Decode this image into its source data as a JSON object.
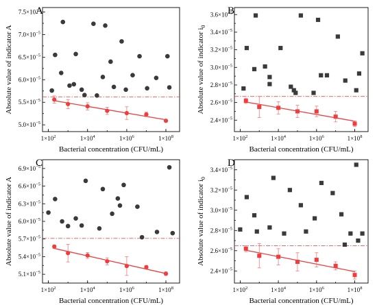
{
  "chart_data": [
    {
      "type": "scatter",
      "panel": "A",
      "ylabel": "Absolute value of indicator A",
      "xlabel": "Bacterial concentration (CFU/mL)",
      "x_scale": "log",
      "x_tick_labels": [
        {
          "value": 100,
          "mantissa": "1×10",
          "exponent": "2"
        },
        {
          "value": 10000,
          "mantissa": "1×10",
          "exponent": "4"
        },
        {
          "value": 1000000,
          "mantissa": "1×10",
          "exponent": "6"
        },
        {
          "value": 100000000,
          "mantissa": "1×10",
          "exponent": "8"
        }
      ],
      "xlim": [
        50,
        500000000
      ],
      "ylim": [
        4.85e-05,
        7.6e-05
      ],
      "y_tick_labels": [
        {
          "value": 5e-05,
          "mantissa": "5.0×10",
          "exponent": "−5"
        },
        {
          "value": 5.5e-05,
          "mantissa": "5.5×10",
          "exponent": "−5"
        },
        {
          "value": 6e-05,
          "mantissa": "6.0×10",
          "exponent": "−5"
        },
        {
          "value": 6.5e-05,
          "mantissa": "6.5×10",
          "exponent": "−5"
        },
        {
          "value": 7e-05,
          "mantissa": "7.0×10",
          "exponent": "−5"
        },
        {
          "value": 7.5e-05,
          "mantissa": "7.5×10",
          "exponent": "−5"
        }
      ],
      "marker": "circle",
      "threshold": 5.62e-05,
      "series": [
        {
          "color": "#3a3a3a",
          "x": [
            150,
            220,
            450,
            550,
            1200,
            2000,
            2500,
            5000,
            7000,
            20000,
            30000,
            60000,
            80000,
            150000,
            220000,
            550000,
            900000,
            2000000,
            4500000,
            11000000,
            32000000,
            120000000,
            150000000
          ],
          "y": [
            5.76e-05,
            6.55e-05,
            6.15e-05,
            7.28e-05,
            5.87e-05,
            5.9e-05,
            6.57e-05,
            5.78e-05,
            5.66e-05,
            7.24e-05,
            5.65e-05,
            6.06e-05,
            7.2e-05,
            6.4e-05,
            5.84e-05,
            6.85e-05,
            5.78e-05,
            6.1e-05,
            6.52e-05,
            5.81e-05,
            6.04e-05,
            6.52e-05,
            5.83e-05
          ]
        },
        {
          "color": "#f03c3c",
          "x": [
            200,
            1000,
            10000,
            100000,
            1000000,
            10000000,
            100000000
          ],
          "y": [
            5.56e-05,
            5.46e-05,
            5.41e-05,
            5.31e-05,
            5.26e-05,
            5.23e-05,
            5.09e-05
          ],
          "error": [
            8e-07,
            1e-06,
            8e-07,
            8e-07,
            1.4e-06,
            5e-07,
            3e-07
          ]
        }
      ]
    },
    {
      "type": "scatter",
      "panel": "B",
      "ylabel_main": "Absolute value of indicator i",
      "ylabel_sub": "0",
      "xlabel": "Bacterial concentration (CFU/mL)",
      "x_scale": "log",
      "x_tick_labels": [
        {
          "value": 100,
          "mantissa": "1×10",
          "exponent": "2"
        },
        {
          "value": 10000,
          "mantissa": "1×10",
          "exponent": "4"
        },
        {
          "value": 1000000,
          "mantissa": "1×10",
          "exponent": "6"
        },
        {
          "value": 100000000,
          "mantissa": "1×10",
          "exponent": "8"
        }
      ],
      "xlim": [
        50,
        500000000
      ],
      "ylim": [
        2.27e-05,
        3.68e-05
      ],
      "y_tick_labels": [
        {
          "value": 2.4e-05,
          "mantissa": "2.4×10",
          "exponent": "−5"
        },
        {
          "value": 2.6e-05,
          "mantissa": "2.6×10",
          "exponent": "−5"
        },
        {
          "value": 2.8e-05,
          "mantissa": "2.8×10",
          "exponent": "−5"
        },
        {
          "value": 3e-05,
          "mantissa": "3.0×10",
          "exponent": "−5"
        },
        {
          "value": 3.2e-05,
          "mantissa": "3.2×10",
          "exponent": "−5"
        },
        {
          "value": 3.4e-05,
          "mantissa": "3.4×10",
          "exponent": "−5"
        },
        {
          "value": 3.6e-05,
          "mantissa": "3.6×10",
          "exponent": "−5"
        }
      ],
      "marker": "square",
      "threshold": 2.67e-05,
      "series": [
        {
          "color": "#3a3a3a",
          "x": [
            150,
            220,
            550,
            650,
            2000,
            3500,
            3500,
            13000,
            45000,
            65000,
            80000,
            150000,
            700000,
            1200000,
            1700000,
            3500000,
            13000000,
            32000000,
            120000000,
            170000000,
            250000000
          ],
          "y": [
            2.76e-05,
            3.22e-05,
            2.98e-05,
            3.59e-05,
            3.01e-05,
            2.81e-05,
            2.89e-05,
            3.22e-05,
            2.78e-05,
            2.74e-05,
            2.71e-05,
            3.59e-05,
            2.71e-05,
            3.54e-05,
            2.91e-05,
            2.91e-05,
            3.35e-05,
            2.85e-05,
            2.74e-05,
            2.93e-05,
            3.16e-05
          ],
          "note": "grey squares"
        },
        {
          "color": "#f03c3c",
          "x": [
            200,
            1000,
            10000,
            100000,
            1000000,
            10000000,
            100000000
          ],
          "y": [
            2.62e-05,
            2.55e-05,
            2.54e-05,
            2.5e-05,
            2.5e-05,
            2.44e-05,
            2.36e-05
          ],
          "error": [
            3e-07,
            1.2e-06,
            7e-07,
            7e-07,
            6e-07,
            6e-07,
            3e-07
          ]
        }
      ]
    },
    {
      "type": "scatter",
      "panel": "C",
      "ylabel": "Absolute value of indicator A",
      "xlabel": "Bacterial concentration (CFU/mL)",
      "x_scale": "log",
      "x_tick_labels": [
        {
          "value": 100,
          "mantissa": "1×10",
          "exponent": "2"
        },
        {
          "value": 10000,
          "mantissa": "1×10",
          "exponent": "4"
        },
        {
          "value": 1000000,
          "mantissa": "1×10",
          "exponent": "6"
        },
        {
          "value": 100000000,
          "mantissa": "1×10",
          "exponent": "8"
        }
      ],
      "xlim": [
        50,
        500000000
      ],
      "ylim": [
        4.95e-05,
        7.05e-05
      ],
      "y_tick_labels": [
        {
          "value": 5.1e-05,
          "mantissa": "5.1×10",
          "exponent": "−5"
        },
        {
          "value": 5.4e-05,
          "mantissa": "5.4×10",
          "exponent": "−5"
        },
        {
          "value": 5.7e-05,
          "mantissa": "5.7×10",
          "exponent": "−5"
        },
        {
          "value": 6e-05,
          "mantissa": "6.0×10",
          "exponent": "−5"
        },
        {
          "value": 6.3e-05,
          "mantissa": "6.3×10",
          "exponent": "−5"
        },
        {
          "value": 6.6e-05,
          "mantissa": "6.6×10",
          "exponent": "−5"
        },
        {
          "value": 6.9e-05,
          "mantissa": "6.9×10",
          "exponent": "−5"
        }
      ],
      "marker": "circle",
      "threshold": 5.71e-05,
      "series": [
        {
          "color": "#3a3a3a",
          "x": [
            100,
            220,
            500,
            1000,
            2500,
            5000,
            8000,
            40000,
            60000,
            180000,
            350000,
            450000,
            700000,
            3500000,
            6000000,
            35000000,
            150000000,
            220000000
          ],
          "y": [
            6.15e-05,
            6.38e-05,
            6e-05,
            5.92e-05,
            6.05e-05,
            5.93e-05,
            6.69e-05,
            5.88e-05,
            6.55e-05,
            6.13e-05,
            6.39e-05,
            6.27e-05,
            6.62e-05,
            6.25e-05,
            5.73e-05,
            5.82e-05,
            6.92e-05,
            5.8e-05
          ]
        },
        {
          "color": "#f03c3c",
          "x": [
            200,
            1000,
            10000,
            100000,
            1000000,
            10000000,
            100000000
          ],
          "y": [
            5.57e-05,
            5.46e-05,
            5.42e-05,
            5.32e-05,
            5.24e-05,
            5.22e-05,
            5.11e-05
          ],
          "error": [
            3e-07,
            1.5e-06,
            5e-07,
            6e-07,
            1.6e-06,
            3e-07,
            3e-07
          ]
        }
      ]
    },
    {
      "type": "scatter",
      "panel": "D",
      "ylabel_main": "Absolute value of indicator i",
      "ylabel_sub": "0",
      "xlabel": "Bacterial concentration (CFU/mL)",
      "x_scale": "log",
      "x_tick_labels": [
        {
          "value": 100,
          "mantissa": "1×10",
          "exponent": "2"
        },
        {
          "value": 10000,
          "mantissa": "1×10",
          "exponent": "4"
        },
        {
          "value": 1000000,
          "mantissa": "1×10",
          "exponent": "6"
        },
        {
          "value": 100000000,
          "mantissa": "1×10",
          "exponent": "8"
        }
      ],
      "xlim": [
        50,
        500000000
      ],
      "ylim": [
        2.28e-05,
        3.5e-05
      ],
      "y_tick_labels": [
        {
          "value": 2.4e-05,
          "mantissa": "2.4×10",
          "exponent": "−5"
        },
        {
          "value": 2.6e-05,
          "mantissa": "2.6×10",
          "exponent": "−5"
        },
        {
          "value": 2.8e-05,
          "mantissa": "2.8×10",
          "exponent": "−5"
        },
        {
          "value": 3e-05,
          "mantissa": "3.0×10",
          "exponent": "−5"
        },
        {
          "value": 3.2e-05,
          "mantissa": "3.2×10",
          "exponent": "−5"
        },
        {
          "value": 3.4e-05,
          "mantissa": "3.4×10",
          "exponent": "−5"
        }
      ],
      "marker": "square",
      "threshold": 2.65e-05,
      "series": [
        {
          "color": "#3a3a3a",
          "x": [
            100,
            220,
            550,
            750,
            3500,
            5500,
            20000,
            40000,
            150000,
            280000,
            800000,
            1800000,
            7000000,
            20000000,
            30000000,
            60000000,
            120000000,
            150000000,
            250000000
          ],
          "y": [
            2.81e-05,
            3.13e-05,
            2.95e-05,
            2.79e-05,
            2.83e-05,
            3.32e-05,
            2.77e-05,
            3.2e-05,
            3.05e-05,
            2.79e-05,
            2.92e-05,
            3.27e-05,
            3.17e-05,
            2.96e-05,
            2.66e-05,
            2.77e-05,
            3.45e-05,
            2.7e-05,
            2.77e-05
          ]
        },
        {
          "color": "#f03c3c",
          "x": [
            200,
            1000,
            10000,
            100000,
            1000000,
            10000000,
            100000000
          ],
          "y": [
            2.62e-05,
            2.55e-05,
            2.54e-05,
            2.49e-05,
            2.51e-05,
            2.45e-05,
            2.36e-05
          ],
          "error": [
            3e-07,
            1.2e-06,
            8e-07,
            9e-07,
            7e-07,
            4e-07,
            4e-07
          ]
        }
      ]
    }
  ]
}
